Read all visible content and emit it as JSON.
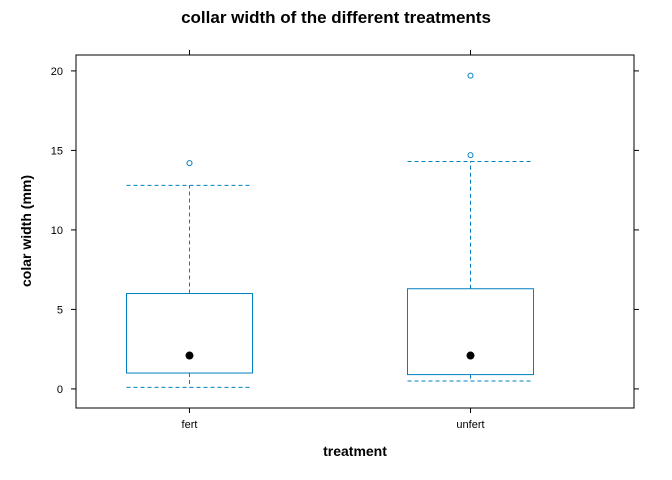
{
  "chart_data": {
    "type": "boxplot",
    "title": "collar width of the different treatments",
    "xlabel": "treatment",
    "ylabel": "colar width (mm)",
    "categories": [
      "fert",
      "unfert"
    ],
    "boxes": [
      {
        "category": "fert",
        "whisker_low": 0.1,
        "q1": 1.0,
        "median": 2.1,
        "q3": 6.0,
        "whisker_high": 12.8,
        "outliers": [
          14.2
        ]
      },
      {
        "category": "unfert",
        "whisker_low": 0.5,
        "q1": 0.9,
        "median": 2.1,
        "q3": 6.3,
        "whisker_high": 14.3,
        "outliers": [
          14.7,
          19.7
        ]
      }
    ],
    "yticks": [
      0,
      5,
      10,
      15,
      20
    ],
    "ylim": [
      -1.2,
      21.0
    ],
    "grid": false,
    "colors": {
      "box": "#0080c0",
      "median": "#000000",
      "frame": "#000000"
    }
  }
}
